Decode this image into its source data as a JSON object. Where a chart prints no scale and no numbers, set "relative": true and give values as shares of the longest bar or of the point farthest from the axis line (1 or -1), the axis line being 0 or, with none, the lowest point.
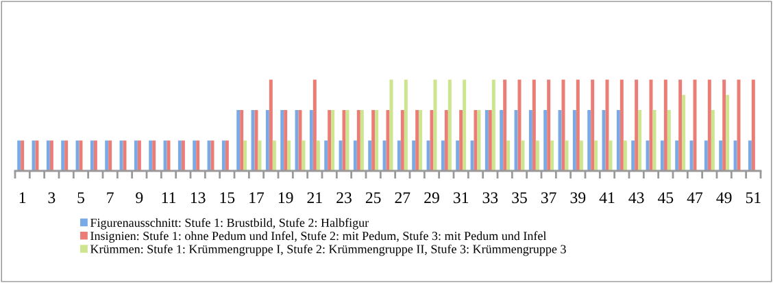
{
  "chart_data": {
    "type": "bar",
    "relative": true,
    "categories": [
      "1",
      null,
      "3",
      null,
      "5",
      null,
      "7",
      null,
      "9",
      null,
      "11",
      null,
      "13",
      null,
      "15",
      null,
      "17",
      null,
      "19",
      null,
      "21",
      null,
      "23",
      null,
      "25",
      null,
      "27",
      null,
      "29",
      null,
      "31",
      null,
      "33",
      null,
      "35",
      null,
      "37",
      null,
      "39",
      null,
      "41",
      null,
      "43",
      null,
      "45",
      null,
      "47",
      null,
      "49",
      null,
      "51"
    ],
    "series": [
      {
        "name": "Figurenausschnitt: Stufe 1: Brustbild, Stufe 2: Halbfigur",
        "color": "#7aaae6",
        "values": [
          0.333,
          0.333,
          0.333,
          0.333,
          0.333,
          0.333,
          0.333,
          0.333,
          0.333,
          0.333,
          0.333,
          0.333,
          0.333,
          0.333,
          0.333,
          0.667,
          0.667,
          0.667,
          0.667,
          0.667,
          0.667,
          0.333,
          0.333,
          0.333,
          0.333,
          0.333,
          0.333,
          0.333,
          0.333,
          0.333,
          0.333,
          0.333,
          0.667,
          0.667,
          0.667,
          0.667,
          0.667,
          0.667,
          0.667,
          0.667,
          0.667,
          0.667,
          0.333,
          0.333,
          0.333,
          0.333,
          0.333,
          0.333,
          0.333,
          0.333,
          0.333
        ]
      },
      {
        "name": "Insignien: Stufe 1: ohne Pedum und Infel, Stufe 2: mit Pedum, Stufe 3: mit Pedum und Infel",
        "color": "#ea7d76",
        "values": [
          0.333,
          0.333,
          0.333,
          0.333,
          0.333,
          0.333,
          0.333,
          0.333,
          0.333,
          0.333,
          0.333,
          0.333,
          0.333,
          0.333,
          0.333,
          0.667,
          0.667,
          1,
          0.667,
          0.667,
          1,
          0.667,
          0.667,
          0.667,
          0.667,
          0.667,
          0.667,
          0.667,
          0.667,
          0.667,
          0.667,
          0.667,
          0.667,
          1,
          1,
          1,
          1,
          1,
          1,
          1,
          1,
          1,
          1,
          1,
          1,
          1,
          1,
          1,
          1,
          1,
          1
        ]
      },
      {
        "name": "Krümmen: Stufe 1: Krümmengruppe I, Stufe 2: Krümmengruppe II, Stufe 3: Krümmengruppe 3",
        "color": "#cde58e",
        "values": [
          null,
          null,
          null,
          null,
          null,
          null,
          null,
          null,
          null,
          null,
          null,
          null,
          null,
          null,
          null,
          0.333,
          0.333,
          0.333,
          0.333,
          0.333,
          0.333,
          0.667,
          0.667,
          0.667,
          0.667,
          1,
          1,
          0.667,
          1,
          1,
          1,
          0.667,
          1,
          0.333,
          0.333,
          0.333,
          0.333,
          0.333,
          0.333,
          0.333,
          0.333,
          0.333,
          0.667,
          0.667,
          0.667,
          0.833,
          null,
          0.667,
          0.833,
          null,
          null
        ]
      }
    ],
    "legend": "bottom"
  }
}
